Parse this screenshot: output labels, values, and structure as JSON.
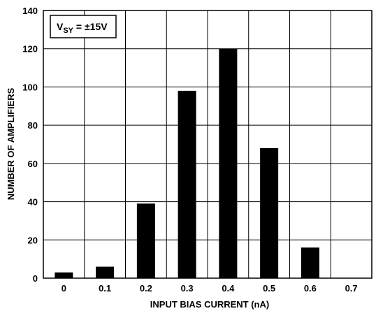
{
  "chart_data": {
    "type": "bar",
    "title": "",
    "xlabel": "INPUT BIAS CURRENT (nA)",
    "ylabel": "NUMBER OF AMPLIFIERS",
    "categories": [
      "0",
      "0.1",
      "0.2",
      "0.3",
      "0.4",
      "0.5",
      "0.6",
      "0.7"
    ],
    "values": [
      3,
      6,
      39,
      98,
      120,
      68,
      16,
      0
    ],
    "ylim": [
      0,
      140
    ],
    "yticks": [
      "0",
      "20",
      "40",
      "60",
      "80",
      "100",
      "120",
      "140"
    ],
    "grid": true,
    "bar_color": "#000000",
    "annotation": {
      "prefix": "V",
      "subscript": "SY",
      "suffix": " = ±15V",
      "position": "top-left"
    }
  }
}
